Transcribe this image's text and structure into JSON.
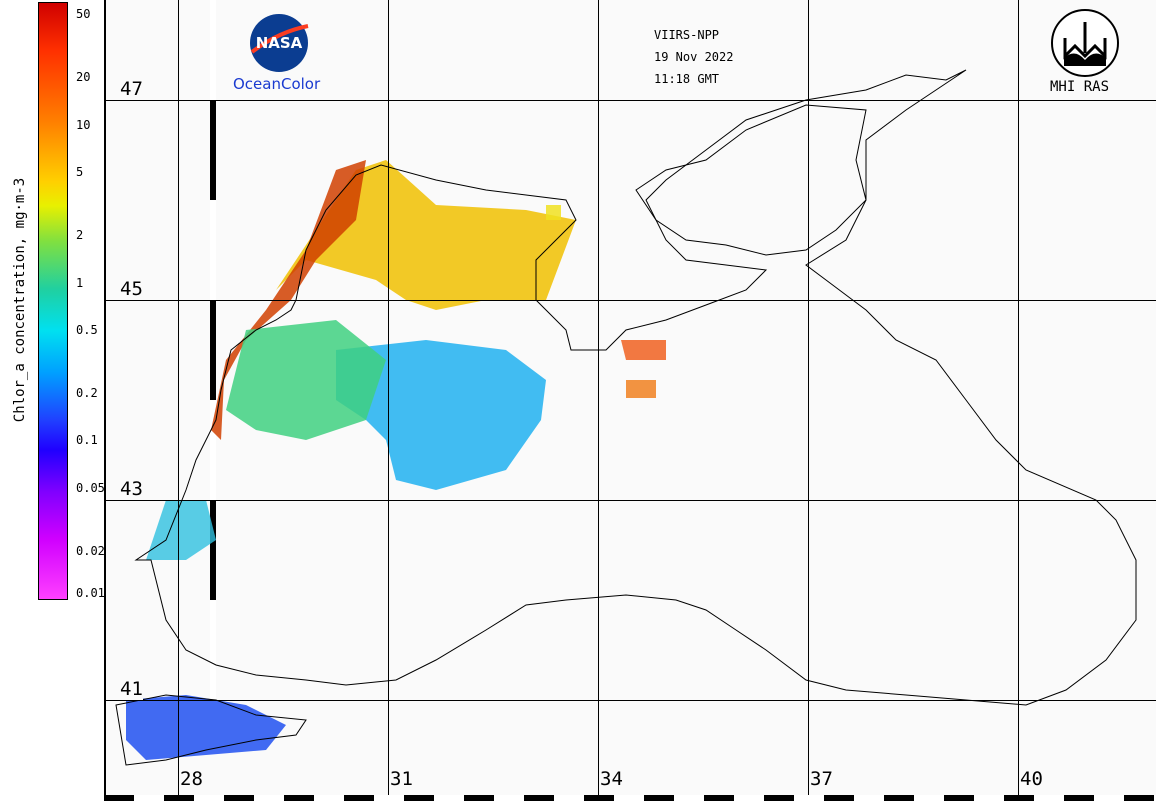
{
  "colorbar": {
    "title": "Chlor_a concentration, mg·m-3",
    "ticks": [
      {
        "label": "50",
        "value": 50
      },
      {
        "label": "20",
        "value": 20
      },
      {
        "label": "10",
        "value": 10
      },
      {
        "label": "5",
        "value": 5
      },
      {
        "label": "2",
        "value": 2
      },
      {
        "label": "1",
        "value": 1
      },
      {
        "label": "0.5",
        "value": 0.5
      },
      {
        "label": "0.2",
        "value": 0.2
      },
      {
        "label": "0.1",
        "value": 0.1
      },
      {
        "label": "0.05",
        "value": 0.05
      },
      {
        "label": "0.02",
        "value": 0.02
      },
      {
        "label": "0.01",
        "value": 0.01
      }
    ]
  },
  "header": {
    "sensor": "VIIRS-NPP",
    "date": "19 Nov 2022",
    "time": "11:18 GMT",
    "left_logo_text": "NASA",
    "left_caption": "OceanColor",
    "right_caption": "MHI RAS"
  },
  "grid": {
    "latitudes": [
      "47",
      "45",
      "43",
      "41"
    ],
    "longitudes": [
      "28",
      "31",
      "34",
      "37",
      "40"
    ]
  },
  "colors": {
    "land": "#fafafa",
    "coast": "#000000",
    "high": "#d02000",
    "mid": "#f0a000",
    "low": "#1e90ff"
  }
}
